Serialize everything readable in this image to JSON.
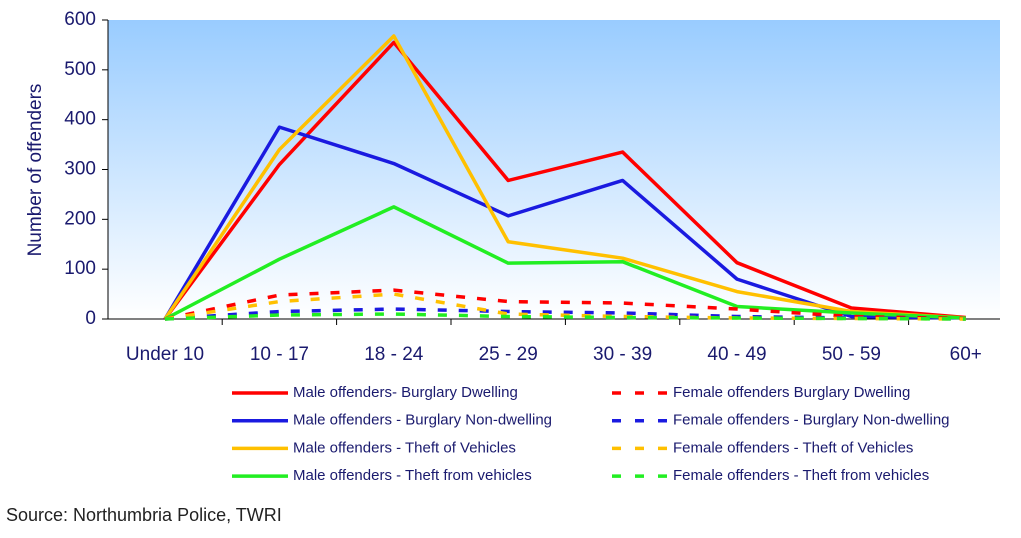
{
  "chart_data": {
    "type": "line",
    "y_label": "Number of offenders",
    "source": "Source: Northumbria Police, TWRI",
    "categories": [
      "Under 10",
      "10 - 17",
      "18 - 24",
      "25 - 29",
      "30 - 39",
      "40 - 49",
      "50 - 59",
      "60+"
    ],
    "ylim": [
      0,
      600
    ],
    "yticks": [
      0,
      100,
      200,
      300,
      400,
      500,
      600
    ],
    "series": [
      {
        "name": "Male offenders- Burglary Dwelling",
        "color": "#ff0000",
        "style": "solid",
        "values": [
          0,
          310,
          555,
          278,
          335,
          113,
          22,
          3
        ]
      },
      {
        "name": "Male offenders - Burglary Non-dwelling",
        "color": "#1a1ae0",
        "style": "solid",
        "values": [
          0,
          385,
          312,
          207,
          278,
          80,
          5,
          2
        ]
      },
      {
        "name": "Male offenders - Theft of Vehicles",
        "color": "#ffc000",
        "style": "solid",
        "values": [
          0,
          340,
          568,
          155,
          122,
          55,
          15,
          2
        ]
      },
      {
        "name": "Male offenders - Theft from vehicles",
        "color": "#22ee22",
        "style": "solid",
        "values": [
          0,
          120,
          225,
          112,
          115,
          25,
          12,
          2
        ]
      },
      {
        "name": "Female offenders Burglary Dwelling",
        "color": "#ff0000",
        "style": "dashed",
        "values": [
          0,
          48,
          58,
          35,
          32,
          20,
          5,
          1
        ]
      },
      {
        "name": "Female offenders - Burglary Non-dwelling",
        "color": "#1a1ae0",
        "style": "dashed",
        "values": [
          0,
          15,
          20,
          15,
          12,
          5,
          2,
          0
        ]
      },
      {
        "name": "Female offenders - Theft of Vehicles",
        "color": "#ffc000",
        "style": "dashed",
        "values": [
          0,
          35,
          50,
          10,
          5,
          2,
          1,
          0
        ]
      },
      {
        "name": "Female offenders - Theft from vehicles",
        "color": "#22ee22",
        "style": "dashed",
        "values": [
          0,
          8,
          10,
          5,
          3,
          2,
          1,
          0
        ]
      }
    ]
  }
}
